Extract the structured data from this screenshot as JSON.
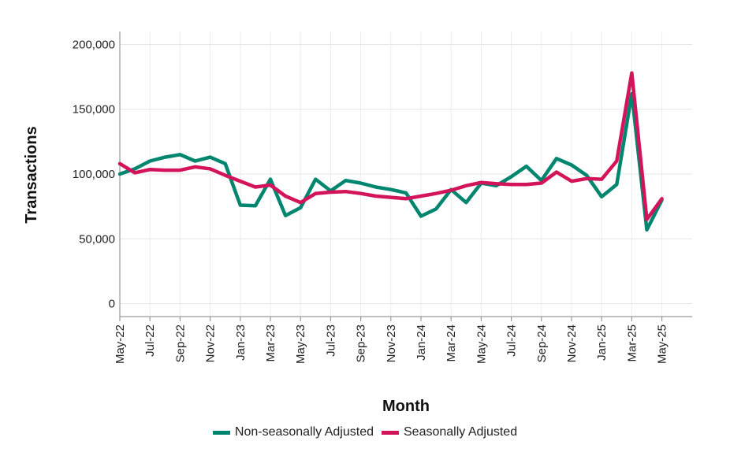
{
  "chart_data": {
    "type": "line",
    "xlabel": "Month",
    "ylabel": "Transactions",
    "ylim": [
      -10000,
      210000
    ],
    "yticks": [
      0,
      50000,
      100000,
      150000,
      200000
    ],
    "ytick_labels": [
      "0",
      "50,000",
      "100,000",
      "150,000",
      "200,000"
    ],
    "x": [
      "May-22",
      "Jun-22",
      "Jul-22",
      "Aug-22",
      "Sep-22",
      "Oct-22",
      "Nov-22",
      "Dec-22",
      "Jan-23",
      "Feb-23",
      "Mar-23",
      "Apr-23",
      "May-23",
      "Jun-23",
      "Jul-23",
      "Aug-23",
      "Sep-23",
      "Oct-23",
      "Nov-23",
      "Dec-23",
      "Jan-24",
      "Feb-24",
      "Mar-24",
      "Apr-24",
      "May-24",
      "Jun-24",
      "Jul-24",
      "Aug-24",
      "Sep-24",
      "Oct-24",
      "Nov-24",
      "Dec-24",
      "Jan-25",
      "Feb-25",
      "Mar-25",
      "Apr-25",
      "May-25"
    ],
    "xtick_labels": [
      "May-22",
      "Jul-22",
      "Sep-22",
      "Nov-22",
      "Jan-23",
      "Mar-23",
      "May-23",
      "Jul-23",
      "Sep-23",
      "Nov-23",
      "Jan-24",
      "Mar-24",
      "May-24",
      "Jul-24",
      "Sep-24",
      "Nov-24",
      "Jan-25",
      "Mar-25",
      "May-25"
    ],
    "grid": true,
    "legend_position": "bottom",
    "series": [
      {
        "name": "Non-seasonally Adjusted",
        "color": "#00856F",
        "values": [
          100000,
          104000,
          110000,
          113000,
          115000,
          110000,
          113000,
          108000,
          76000,
          75500,
          96000,
          68000,
          74000,
          96000,
          87000,
          95000,
          93000,
          90000,
          88000,
          85500,
          67500,
          73000,
          88000,
          78000,
          93000,
          91000,
          98000,
          106000,
          95000,
          112000,
          107000,
          99000,
          82500,
          92000,
          162000,
          57000,
          80000
        ]
      },
      {
        "name": "Seasonally Adjusted",
        "color": "#D4145A",
        "values": [
          108000,
          101000,
          103500,
          103000,
          103000,
          105500,
          104000,
          99000,
          94500,
          90000,
          91500,
          83000,
          78000,
          85000,
          86000,
          86500,
          85000,
          83000,
          82000,
          81000,
          83000,
          85000,
          87500,
          91000,
          93500,
          92500,
          92000,
          92000,
          93000,
          101500,
          94500,
          96500,
          96000,
          110000,
          178000,
          65000,
          81000
        ]
      }
    ]
  }
}
